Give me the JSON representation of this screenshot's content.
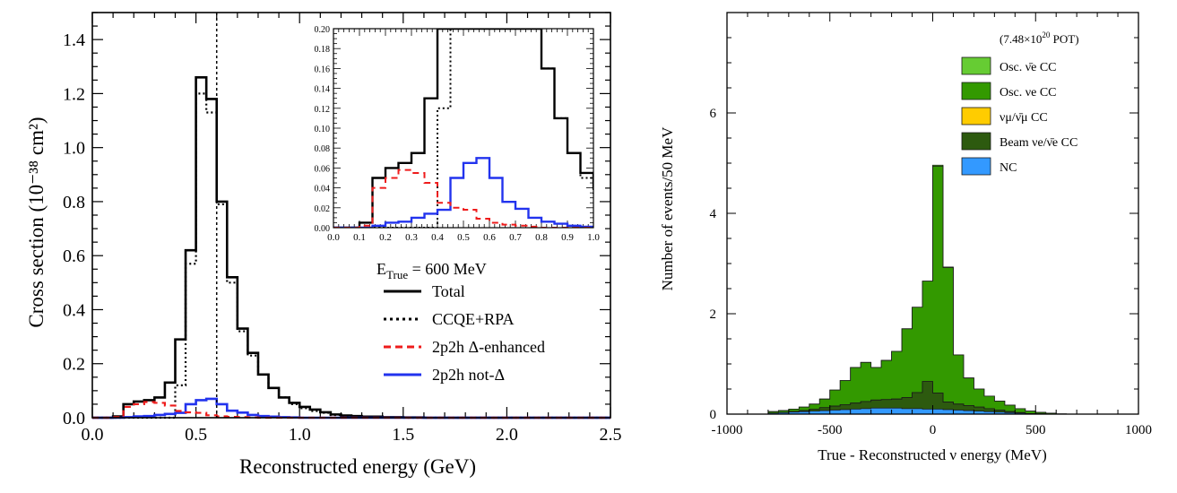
{
  "chart_data": [
    {
      "type": "line",
      "title": "",
      "xlabel": "Reconstructed energy (GeV)",
      "ylabel": "Cross section (10⁻³⁸ cm²)",
      "xlim": [
        0,
        2.5
      ],
      "ylim": [
        0,
        1.5
      ],
      "x_ticks": [
        "0.0",
        "0.5",
        "1.0",
        "1.5",
        "2.0",
        "2.5"
      ],
      "y_ticks": [
        "0.0",
        "0.2",
        "0.4",
        "0.6",
        "0.8",
        "1.0",
        "1.2",
        "1.4"
      ],
      "legend_title": "E",
      "legend_title_sub": "True",
      "legend_title_rest": " = 600 MeV",
      "legend_placement": "center-right",
      "vertical_marker_x": 0.6,
      "bin_edges": [
        0.0,
        0.05,
        0.1,
        0.15,
        0.2,
        0.25,
        0.3,
        0.35,
        0.4,
        0.45,
        0.5,
        0.55,
        0.6,
        0.65,
        0.7,
        0.75,
        0.8,
        0.85,
        0.9,
        0.95,
        1.0,
        1.05,
        1.1,
        1.15,
        1.2,
        1.25,
        1.3,
        1.4,
        1.5,
        1.6,
        1.7,
        1.8,
        1.9,
        2.0,
        2.1,
        2.2,
        2.3,
        2.4,
        2.5
      ],
      "series": [
        {
          "name": "Total",
          "color": "#000000",
          "dash": "solid",
          "values": [
            0,
            0,
            0.005,
            0.05,
            0.06,
            0.065,
            0.075,
            0.13,
            0.29,
            0.62,
            1.26,
            1.18,
            0.8,
            0.52,
            0.33,
            0.24,
            0.16,
            0.11,
            0.075,
            0.055,
            0.04,
            0.03,
            0.02,
            0.012,
            0.008,
            0.006,
            0.004,
            0.002,
            0.001,
            0,
            0,
            0,
            0,
            0,
            0,
            0,
            0,
            0
          ]
        },
        {
          "name": "CCQE+RPA",
          "color": "#000000",
          "dash": "dotted",
          "values": [
            0,
            0,
            0,
            0,
            0,
            0,
            0,
            0,
            0.12,
            0.57,
            1.2,
            1.13,
            0.79,
            0.5,
            0.32,
            0.23,
            0.16,
            0.11,
            0.075,
            0.05,
            0.035,
            0.025,
            0.018,
            0.01,
            0.006,
            0.004,
            0.003,
            0.001,
            0,
            0,
            0,
            0,
            0,
            0,
            0,
            0,
            0,
            0
          ]
        },
        {
          "name": "2p2h Δ-enhanced",
          "color": "#ee1c1c",
          "dash": "dashed",
          "values": [
            0,
            0,
            0.002,
            0.04,
            0.05,
            0.058,
            0.055,
            0.045,
            0.025,
            0.02,
            0.018,
            0.009,
            0.005,
            0.003,
            0.002,
            0.001,
            0,
            0,
            0,
            0,
            0,
            0,
            0,
            0,
            0,
            0,
            0,
            0,
            0,
            0,
            0,
            0,
            0,
            0,
            0,
            0,
            0,
            0
          ]
        },
        {
          "name": "2p2h not-Δ",
          "color": "#2233ee",
          "dash": "solid",
          "values": [
            0,
            0,
            0,
            0.002,
            0.005,
            0.006,
            0.01,
            0.014,
            0.018,
            0.05,
            0.065,
            0.07,
            0.05,
            0.026,
            0.019,
            0.01,
            0.006,
            0.004,
            0.002,
            0.001,
            0,
            0,
            0,
            0,
            0,
            0,
            0,
            0,
            0,
            0,
            0,
            0,
            0,
            0,
            0,
            0,
            0,
            0
          ]
        }
      ],
      "inset": {
        "xlim": [
          0,
          1.0
        ],
        "ylim": [
          0,
          0.2
        ],
        "x_ticks": [
          "0.0",
          "0.1",
          "0.2",
          "0.3",
          "0.4",
          "0.5",
          "0.6",
          "0.7",
          "0.8",
          "0.9",
          "1.0"
        ],
        "y_ticks": [
          "0.00",
          "0.02",
          "0.04",
          "0.06",
          "0.08",
          "0.10",
          "0.12",
          "0.14",
          "0.16",
          "0.18",
          "0.20"
        ]
      }
    },
    {
      "type": "area",
      "stacked": true,
      "title": "",
      "annotation_base": "(7.48×10",
      "annotation_sup": "20",
      "annotation_rest": " POT)",
      "xlabel": "True - Reconstructed ν energy (MeV)",
      "ylabel": "Number of events/50 MeV",
      "xlim": [
        -1000,
        1000
      ],
      "ylim": [
        0,
        8
      ],
      "x_ticks": [
        "-1000",
        "-500",
        "0",
        "500",
        "1000"
      ],
      "y_ticks": [
        "0",
        "2",
        "4",
        "6"
      ],
      "legend_placement": "top-right",
      "bin_edges": [
        -1000,
        -950,
        -900,
        -850,
        -800,
        -750,
        -700,
        -650,
        -600,
        -550,
        -500,
        -450,
        -400,
        -350,
        -300,
        -250,
        -200,
        -150,
        -100,
        -50,
        0,
        50,
        100,
        150,
        200,
        250,
        300,
        350,
        400,
        450,
        500,
        550,
        600,
        650,
        700,
        750,
        800,
        850,
        900,
        950,
        1000
      ],
      "series": [
        {
          "name": "NC",
          "color": "#3399ff",
          "latex": [
            "NC"
          ],
          "values": [
            0,
            0,
            0,
            0,
            0.02,
            0.03,
            0.04,
            0.05,
            0.06,
            0.07,
            0.08,
            0.09,
            0.1,
            0.11,
            0.12,
            0.12,
            0.12,
            0.11,
            0.11,
            0.1,
            0.1,
            0.09,
            0.08,
            0.07,
            0.06,
            0.05,
            0.04,
            0.03,
            0.02,
            0.01,
            0.005,
            0,
            0,
            0,
            0,
            0,
            0,
            0,
            0,
            0
          ]
        },
        {
          "name": "Beam νe/ν̄e CC",
          "color": "#2d5a0f",
          "values": [
            0,
            0,
            0,
            0,
            0,
            0,
            0.01,
            0.02,
            0.04,
            0.06,
            0.08,
            0.1,
            0.12,
            0.14,
            0.16,
            0.17,
            0.18,
            0.22,
            0.32,
            0.55,
            0.32,
            0.15,
            0.12,
            0.1,
            0.08,
            0.06,
            0.04,
            0.02,
            0.01,
            0,
            0,
            0,
            0,
            0,
            0,
            0,
            0,
            0,
            0,
            0
          ]
        },
        {
          "name": "νμ/ν̄μ CC",
          "color": "#ffcc00",
          "values": [
            0,
            0,
            0,
            0,
            0,
            0,
            0,
            0,
            0,
            0,
            0,
            0,
            0,
            0,
            0,
            0,
            0,
            0,
            0,
            0,
            0,
            0,
            0,
            0,
            0,
            0,
            0,
            0,
            0,
            0,
            0,
            0,
            0,
            0,
            0,
            0,
            0,
            0,
            0,
            0
          ]
        },
        {
          "name": "Osc. νe CC",
          "color": "#339900",
          "values": [
            0,
            0,
            0,
            0,
            0.03,
            0.04,
            0.05,
            0.07,
            0.1,
            0.17,
            0.32,
            0.48,
            0.71,
            0.78,
            0.65,
            0.78,
            0.95,
            1.37,
            1.7,
            2.0,
            4.52,
            2.68,
            0.98,
            0.55,
            0.36,
            0.25,
            0.18,
            0.13,
            0.08,
            0.05,
            0.03,
            0.02,
            0.005,
            0,
            0,
            0,
            0,
            0,
            0,
            0
          ]
        },
        {
          "name": "Osc. ν̄e CC",
          "color": "#66cc33",
          "values": [
            0,
            0,
            0,
            0,
            0,
            0,
            0,
            0,
            0,
            0,
            0,
            0,
            0,
            0,
            0,
            0,
            0,
            0,
            0,
            0,
            0.02,
            0.01,
            0,
            0,
            0,
            0,
            0,
            0,
            0,
            0,
            0,
            0,
            0,
            0,
            0,
            0,
            0,
            0,
            0,
            0
          ]
        }
      ]
    }
  ]
}
